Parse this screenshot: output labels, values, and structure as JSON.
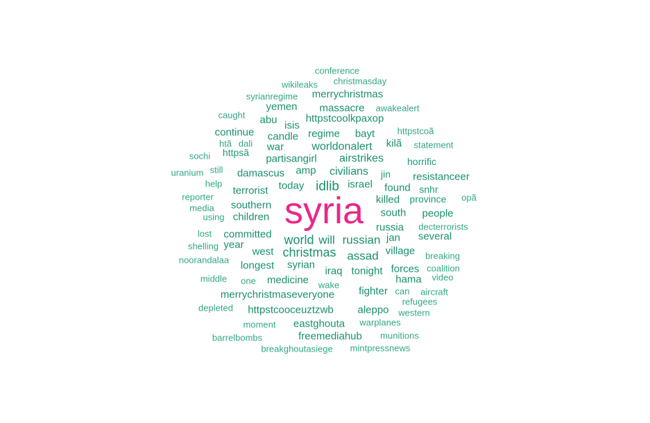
{
  "colors": {
    "background": "#ffffff",
    "small_words": "#33a785",
    "medium_words": "#1f9a78",
    "large_words": "#1a8f6e",
    "primary_word": "#e7298a"
  },
  "words": [
    {
      "text": "syria",
      "weight": 1.0,
      "tier": "primary"
    },
    {
      "text": "idlib",
      "weight": 0.26,
      "tier": "large"
    },
    {
      "text": "christmas",
      "weight": 0.24,
      "tier": "large"
    },
    {
      "text": "world",
      "weight": 0.23,
      "tier": "large"
    },
    {
      "text": "russian",
      "weight": 0.22,
      "tier": "large"
    },
    {
      "text": "will",
      "weight": 0.22,
      "tier": "large"
    },
    {
      "text": "assad",
      "weight": 0.21,
      "tier": "large"
    },
    {
      "text": "airstrikes",
      "weight": 0.2,
      "tier": "large"
    },
    {
      "text": "civilians",
      "weight": 0.2,
      "tier": "large"
    },
    {
      "text": "worldonalert",
      "weight": 0.2,
      "tier": "large"
    },
    {
      "text": "israel",
      "weight": 0.19,
      "tier": "large"
    },
    {
      "text": "syrian",
      "weight": 0.19,
      "tier": "large"
    },
    {
      "text": "iraq",
      "weight": 0.19,
      "tier": "large"
    },
    {
      "text": "today",
      "weight": 0.18,
      "tier": "large"
    },
    {
      "text": "amp",
      "weight": 0.18,
      "tier": "large"
    },
    {
      "text": "damascus",
      "weight": 0.17,
      "tier": "large"
    },
    {
      "text": "regime",
      "weight": 0.17,
      "tier": "large"
    },
    {
      "text": "bayt",
      "weight": 0.17,
      "tier": "large"
    },
    {
      "text": "committed",
      "weight": 0.17,
      "tier": "large"
    },
    {
      "text": "west",
      "weight": 0.17,
      "tier": "large"
    },
    {
      "text": "longest",
      "weight": 0.17,
      "tier": "large"
    },
    {
      "text": "tonight",
      "weight": 0.17,
      "tier": "large"
    },
    {
      "text": "medicine",
      "weight": 0.16,
      "tier": "large"
    },
    {
      "text": "fighter",
      "weight": 0.16,
      "tier": "large"
    },
    {
      "text": "aleppo",
      "weight": 0.16,
      "tier": "large"
    },
    {
      "text": "merrychristmaseveryone",
      "weight": 0.16,
      "tier": "large"
    },
    {
      "text": "httpstcooceuztzwb",
      "weight": 0.16,
      "tier": "large"
    },
    {
      "text": "eastghouta",
      "weight": 0.15,
      "tier": "large"
    },
    {
      "text": "freemediahub",
      "weight": 0.15,
      "tier": "large"
    },
    {
      "text": "resistanceer",
      "weight": 0.16,
      "tier": "large"
    },
    {
      "text": "terrorist",
      "weight": 0.16,
      "tier": "large"
    },
    {
      "text": "southern",
      "weight": 0.15,
      "tier": "large"
    },
    {
      "text": "children",
      "weight": 0.15,
      "tier": "large"
    },
    {
      "text": "south",
      "weight": 0.16,
      "tier": "large"
    },
    {
      "text": "people",
      "weight": 0.16,
      "tier": "large"
    },
    {
      "text": "found",
      "weight": 0.15,
      "tier": "large"
    },
    {
      "text": "killed",
      "weight": 0.15,
      "tier": "large"
    },
    {
      "text": "russia",
      "weight": 0.15,
      "tier": "large"
    },
    {
      "text": "jan",
      "weight": 0.15,
      "tier": "large"
    },
    {
      "text": "village",
      "weight": 0.15,
      "tier": "large"
    },
    {
      "text": "several",
      "weight": 0.15,
      "tier": "large"
    },
    {
      "text": "forces",
      "weight": 0.15,
      "tier": "large"
    },
    {
      "text": "hama",
      "weight": 0.15,
      "tier": "large"
    },
    {
      "text": "year",
      "weight": 0.15,
      "tier": "large"
    },
    {
      "text": "candle",
      "weight": 0.15,
      "tier": "large"
    },
    {
      "text": "isis",
      "weight": 0.15,
      "tier": "large"
    },
    {
      "text": "abu",
      "weight": 0.15,
      "tier": "large"
    },
    {
      "text": "war",
      "weight": 0.15,
      "tier": "large"
    },
    {
      "text": "partisangirl",
      "weight": 0.15,
      "tier": "large"
    },
    {
      "text": "massacre",
      "weight": 0.15,
      "tier": "large"
    },
    {
      "text": "httpstcoolkpaxop",
      "weight": 0.15,
      "tier": "large"
    },
    {
      "text": "continue",
      "weight": 0.15,
      "tier": "large"
    },
    {
      "text": "yemen",
      "weight": 0.15,
      "tier": "large"
    },
    {
      "text": "merrychristmas",
      "weight": 0.15,
      "tier": "large"
    },
    {
      "text": "kilã",
      "weight": 0.15,
      "tier": "large"
    },
    {
      "text": "horrific",
      "weight": 0.14,
      "tier": "medium"
    },
    {
      "text": "jin",
      "weight": 0.14,
      "tier": "medium"
    },
    {
      "text": "snhr",
      "weight": 0.14,
      "tier": "medium"
    },
    {
      "text": "province",
      "weight": 0.14,
      "tier": "medium"
    },
    {
      "text": "httpsã",
      "weight": 0.14,
      "tier": "medium"
    },
    {
      "text": "conference",
      "weight": 0.13,
      "tier": "small"
    },
    {
      "text": "christmasday",
      "weight": 0.13,
      "tier": "small"
    },
    {
      "text": "wikileaks",
      "weight": 0.13,
      "tier": "small"
    },
    {
      "text": "syrianregime",
      "weight": 0.13,
      "tier": "small"
    },
    {
      "text": "awakealert",
      "weight": 0.13,
      "tier": "small"
    },
    {
      "text": "caught",
      "weight": 0.13,
      "tier": "small"
    },
    {
      "text": "httpstcoã",
      "weight": 0.12,
      "tier": "small"
    },
    {
      "text": "htã",
      "weight": 0.12,
      "tier": "small"
    },
    {
      "text": "dali",
      "weight": 0.12,
      "tier": "small"
    },
    {
      "text": "statement",
      "weight": 0.13,
      "tier": "small"
    },
    {
      "text": "sochi",
      "weight": 0.13,
      "tier": "small"
    },
    {
      "text": "uranium",
      "weight": 0.13,
      "tier": "small"
    },
    {
      "text": "still",
      "weight": 0.12,
      "tier": "small"
    },
    {
      "text": "help",
      "weight": 0.12,
      "tier": "small"
    },
    {
      "text": "reporter",
      "weight": 0.13,
      "tier": "small"
    },
    {
      "text": "media",
      "weight": 0.12,
      "tier": "small"
    },
    {
      "text": "using",
      "weight": 0.12,
      "tier": "small"
    },
    {
      "text": "opã",
      "weight": 0.12,
      "tier": "small"
    },
    {
      "text": "decterrorists",
      "weight": 0.13,
      "tier": "small"
    },
    {
      "text": "lost",
      "weight": 0.12,
      "tier": "small"
    },
    {
      "text": "shelling",
      "weight": 0.13,
      "tier": "small"
    },
    {
      "text": "noorandalaa",
      "weight": 0.13,
      "tier": "small"
    },
    {
      "text": "breaking",
      "weight": 0.13,
      "tier": "small"
    },
    {
      "text": "coalition",
      "weight": 0.13,
      "tier": "small"
    },
    {
      "text": "middle",
      "weight": 0.13,
      "tier": "small"
    },
    {
      "text": "one",
      "weight": 0.12,
      "tier": "small"
    },
    {
      "text": "wake",
      "weight": 0.12,
      "tier": "small"
    },
    {
      "text": "can",
      "weight": 0.12,
      "tier": "small"
    },
    {
      "text": "video",
      "weight": 0.12,
      "tier": "small"
    },
    {
      "text": "aircraft",
      "weight": 0.13,
      "tier": "small"
    },
    {
      "text": "refugees",
      "weight": 0.13,
      "tier": "small"
    },
    {
      "text": "depleted",
      "weight": 0.13,
      "tier": "small"
    },
    {
      "text": "western",
      "weight": 0.13,
      "tier": "small"
    },
    {
      "text": "moment",
      "weight": 0.13,
      "tier": "small"
    },
    {
      "text": "warplanes",
      "weight": 0.13,
      "tier": "small"
    },
    {
      "text": "barrelbombs",
      "weight": 0.13,
      "tier": "small"
    },
    {
      "text": "munitions",
      "weight": 0.13,
      "tier": "small"
    },
    {
      "text": "breakghoutasiege",
      "weight": 0.13,
      "tier": "small"
    },
    {
      "text": "mintpressnews",
      "weight": 0.13,
      "tier": "small"
    }
  ]
}
